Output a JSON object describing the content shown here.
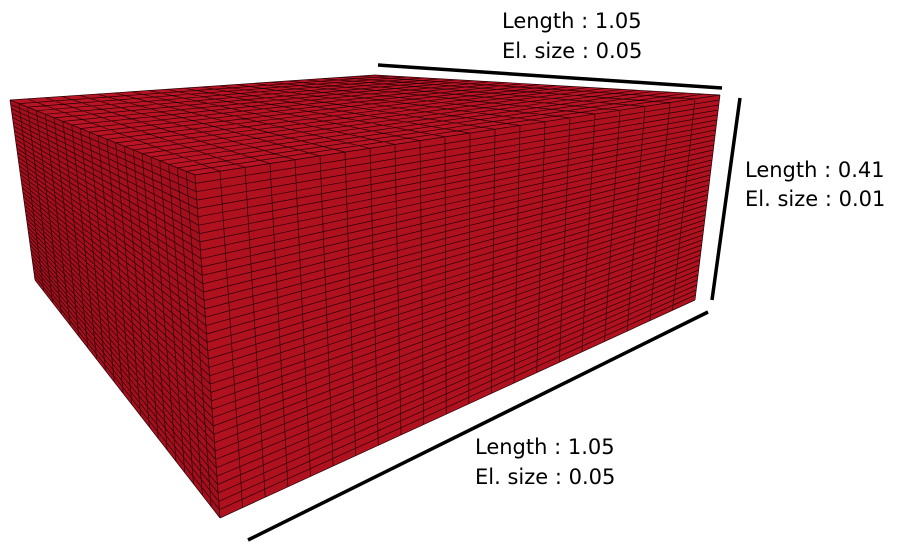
{
  "annotations": [
    {
      "length": "Length : 1.05",
      "el_size": "El. size : 0.05"
    },
    {
      "length": "Length : 0.41",
      "el_size": "El. size : 0.01"
    },
    {
      "length": "Length : 1.05",
      "el_size": "El. size : 0.05"
    }
  ]
}
